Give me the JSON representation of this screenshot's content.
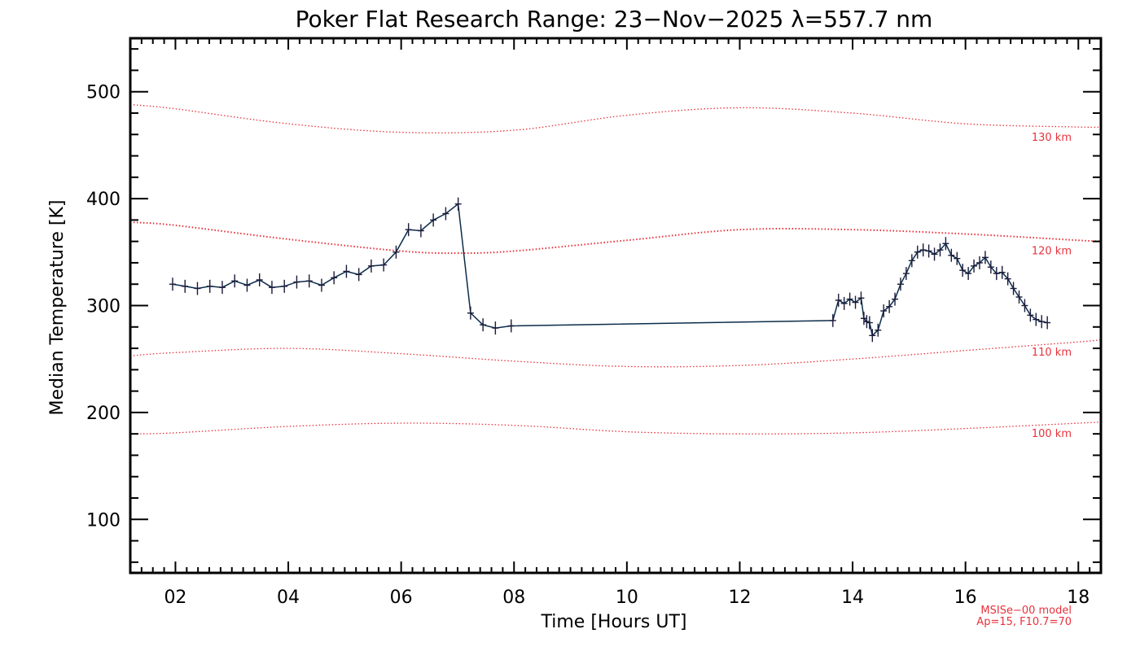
{
  "chart_data": {
    "type": "line",
    "title": "Poker Flat Research Range: 23−Nov−2025 λ=557.7 nm",
    "xlabel": "Time [Hours UT]",
    "ylabel": "Median Temperature [K]",
    "xlim": [
      1.2,
      18.4
    ],
    "ylim": [
      50,
      550
    ],
    "x_ticks": [
      2,
      4,
      6,
      8,
      10,
      12,
      14,
      16,
      18
    ],
    "x_tick_labels": [
      "02",
      "04",
      "06",
      "08",
      "10",
      "12",
      "14",
      "16",
      "18"
    ],
    "y_ticks": [
      100,
      200,
      300,
      400,
      500
    ],
    "y_tick_labels": [
      "100",
      "200",
      "300",
      "400",
      "500"
    ],
    "colors": {
      "measurement": "#0b2d4a",
      "model": "#e8323c",
      "frame": "#000000"
    },
    "series": [
      {
        "name": "Median temperature",
        "style": "line-with-markers",
        "x": [
          1.95,
          2.17,
          2.39,
          2.61,
          2.83,
          3.05,
          3.27,
          3.49,
          3.71,
          3.93,
          4.15,
          4.37,
          4.59,
          4.81,
          5.03,
          5.25,
          5.47,
          5.69,
          5.91,
          6.13,
          6.35,
          6.57,
          6.79,
          7.01,
          7.23,
          7.45,
          7.67,
          7.95,
          13.65,
          13.75,
          13.85,
          13.95,
          14.05,
          14.15,
          14.2,
          14.25,
          14.3,
          14.35,
          14.45,
          14.55,
          14.65,
          14.75,
          14.85,
          14.95,
          15.05,
          15.15,
          15.25,
          15.35,
          15.45,
          15.55,
          15.65,
          15.75,
          15.85,
          15.95,
          16.05,
          16.15,
          16.25,
          16.35,
          16.45,
          16.55,
          16.65,
          16.75,
          16.85,
          16.95,
          17.05,
          17.15,
          17.25,
          17.35,
          17.45
        ],
        "y": [
          320,
          318,
          316,
          318,
          317,
          323,
          319,
          324,
          317,
          318,
          322,
          323,
          319,
          326,
          332,
          329,
          337,
          338,
          350,
          371,
          370,
          380,
          386,
          395,
          293,
          282,
          279,
          281,
          286,
          305,
          302,
          306,
          303,
          307,
          288,
          285,
          284,
          272,
          277,
          295,
          299,
          306,
          320,
          330,
          342,
          350,
          352,
          351,
          348,
          352,
          358,
          347,
          344,
          333,
          330,
          337,
          340,
          345,
          336,
          330,
          331,
          325,
          316,
          308,
          300,
          291,
          287,
          285,
          284
        ]
      }
    ],
    "model_curves": [
      {
        "label": "130 km",
        "x": [
          1.2,
          2,
          4,
          6,
          8,
          10,
          12,
          14,
          16,
          18,
          18.4
        ],
        "y": [
          488,
          484,
          470,
          462,
          464,
          478,
          485,
          480,
          470,
          467,
          467
        ]
      },
      {
        "label": "120 km",
        "x": [
          1.2,
          2,
          4,
          6,
          7,
          8,
          10,
          12,
          14,
          16,
          18,
          18.4
        ],
        "y": [
          378,
          375,
          362,
          351,
          349,
          351,
          361,
          371,
          371,
          367,
          361,
          360
        ]
      },
      {
        "label": "110 km",
        "x": [
          1.2,
          2,
          4,
          6,
          8,
          10,
          12,
          14,
          16,
          18,
          18.4
        ],
        "y": [
          253,
          256,
          260,
          255,
          248,
          243,
          244,
          250,
          258,
          266,
          268
        ]
      },
      {
        "label": "100 km",
        "x": [
          1.2,
          2,
          4,
          6,
          8,
          10,
          12,
          14,
          16,
          18,
          18.4
        ],
        "y": [
          180,
          181,
          187,
          190,
          188,
          182,
          180,
          181,
          185,
          190,
          191
        ]
      }
    ],
    "note_lines": [
      "MSISe−00 model",
      "Ap=15, F10.7=70"
    ]
  }
}
